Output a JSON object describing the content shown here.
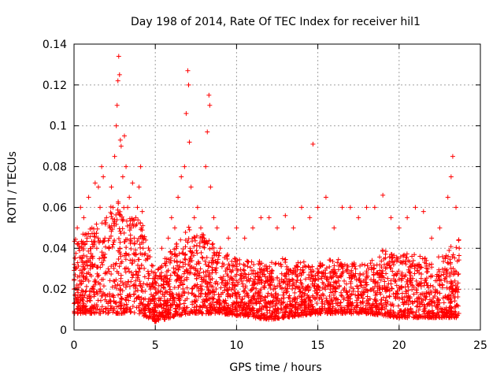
{
  "chart_data": {
    "type": "scatter",
    "title": "Day 198 of 2014, Rate Of TEC Index for receiver hil1",
    "xlabel": "GPS time / hours",
    "ylabel": "ROTI / TECUs",
    "xlim": [
      0,
      25
    ],
    "ylim": [
      0,
      0.14
    ],
    "xticks": [
      0,
      5,
      10,
      15,
      20,
      25
    ],
    "xtick_labels": [
      "0",
      "5",
      "10",
      "15",
      "20",
      "25"
    ],
    "yticks": [
      0,
      0.02,
      0.04,
      0.06,
      0.08,
      0.1,
      0.12,
      0.14
    ],
    "ytick_labels": [
      "0",
      "0.02",
      "0.04",
      "0.06",
      "0.08",
      "0.1",
      "0.12",
      "0.14"
    ],
    "grid": true,
    "marker": "+",
    "color": "#ff0000",
    "series": [
      {
        "name": "ROTI",
        "points": [
          [
            0.0,
            0.02
          ],
          [
            0.1,
            0.03
          ],
          [
            0.2,
            0.05
          ],
          [
            0.3,
            0.04
          ],
          [
            0.4,
            0.06
          ],
          [
            0.5,
            0.035
          ],
          [
            0.6,
            0.055
          ],
          [
            0.7,
            0.025
          ],
          [
            0.8,
            0.045
          ],
          [
            0.9,
            0.065
          ],
          [
            1.0,
            0.03
          ],
          [
            1.1,
            0.05
          ],
          [
            1.2,
            0.02
          ],
          [
            1.3,
            0.072
          ],
          [
            1.4,
            0.04
          ],
          [
            1.5,
            0.07
          ],
          [
            1.6,
            0.06
          ],
          [
            1.7,
            0.08
          ],
          [
            1.8,
            0.075
          ],
          [
            1.9,
            0.045
          ],
          [
            2.0,
            0.055
          ],
          [
            2.1,
            0.03
          ],
          [
            2.2,
            0.05
          ],
          [
            2.3,
            0.07
          ],
          [
            2.4,
            0.06
          ],
          [
            2.5,
            0.085
          ],
          [
            2.6,
            0.1
          ],
          [
            2.65,
            0.11
          ],
          [
            2.7,
            0.122
          ],
          [
            2.75,
            0.134
          ],
          [
            2.8,
            0.125
          ],
          [
            2.85,
            0.093
          ],
          [
            2.9,
            0.09
          ],
          [
            3.0,
            0.075
          ],
          [
            3.1,
            0.095
          ],
          [
            3.2,
            0.08
          ],
          [
            3.3,
            0.06
          ],
          [
            3.4,
            0.065
          ],
          [
            3.5,
            0.05
          ],
          [
            3.6,
            0.072
          ],
          [
            3.7,
            0.045
          ],
          [
            3.8,
            0.055
          ],
          [
            3.9,
            0.06
          ],
          [
            4.0,
            0.07
          ],
          [
            4.1,
            0.08
          ],
          [
            4.2,
            0.058
          ],
          [
            4.3,
            0.045
          ],
          [
            4.5,
            0.035
          ],
          [
            4.7,
            0.02
          ],
          [
            4.9,
            0.015
          ],
          [
            5.0,
            0.02
          ],
          [
            5.2,
            0.03
          ],
          [
            5.4,
            0.04
          ],
          [
            5.6,
            0.035
          ],
          [
            5.8,
            0.045
          ],
          [
            6.0,
            0.055
          ],
          [
            6.2,
            0.05
          ],
          [
            6.4,
            0.065
          ],
          [
            6.6,
            0.075
          ],
          [
            6.8,
            0.08
          ],
          [
            6.9,
            0.106
          ],
          [
            7.0,
            0.127
          ],
          [
            7.05,
            0.12
          ],
          [
            7.1,
            0.092
          ],
          [
            7.2,
            0.07
          ],
          [
            7.4,
            0.055
          ],
          [
            7.6,
            0.06
          ],
          [
            7.8,
            0.05
          ],
          [
            8.0,
            0.045
          ],
          [
            8.1,
            0.08
          ],
          [
            8.2,
            0.097
          ],
          [
            8.3,
            0.115
          ],
          [
            8.35,
            0.11
          ],
          [
            8.4,
            0.07
          ],
          [
            8.6,
            0.055
          ],
          [
            8.8,
            0.05
          ],
          [
            9.0,
            0.04
          ],
          [
            9.5,
            0.045
          ],
          [
            10.0,
            0.05
          ],
          [
            10.5,
            0.045
          ],
          [
            11.0,
            0.05
          ],
          [
            11.5,
            0.055
          ],
          [
            12.0,
            0.055
          ],
          [
            12.5,
            0.05
          ],
          [
            13.0,
            0.056
          ],
          [
            13.5,
            0.05
          ],
          [
            14.0,
            0.06
          ],
          [
            14.5,
            0.055
          ],
          [
            14.7,
            0.091
          ],
          [
            15.0,
            0.06
          ],
          [
            15.5,
            0.065
          ],
          [
            16.0,
            0.05
          ],
          [
            16.5,
            0.06
          ],
          [
            17.0,
            0.06
          ],
          [
            17.5,
            0.055
          ],
          [
            18.0,
            0.06
          ],
          [
            18.5,
            0.06
          ],
          [
            19.0,
            0.066
          ],
          [
            19.5,
            0.055
          ],
          [
            20.0,
            0.05
          ],
          [
            20.5,
            0.055
          ],
          [
            21.0,
            0.06
          ],
          [
            21.5,
            0.058
          ],
          [
            22.0,
            0.045
          ],
          [
            22.5,
            0.05
          ],
          [
            23.0,
            0.065
          ],
          [
            23.2,
            0.075
          ],
          [
            23.3,
            0.085
          ],
          [
            23.5,
            0.06
          ],
          [
            23.7,
            0.04
          ]
        ],
        "envelope": {
          "hours": [
            0,
            1,
            2,
            2.6,
            3,
            3.5,
            4,
            4.5,
            5,
            6,
            7,
            8,
            9,
            10,
            11,
            12,
            13,
            14,
            15,
            16,
            17,
            18,
            19,
            20,
            21,
            22,
            23,
            23.7
          ],
          "typical": [
            0.04,
            0.045,
            0.05,
            0.06,
            0.055,
            0.05,
            0.05,
            0.04,
            0.025,
            0.035,
            0.045,
            0.042,
            0.035,
            0.032,
            0.03,
            0.03,
            0.032,
            0.03,
            0.03,
            0.032,
            0.03,
            0.03,
            0.035,
            0.032,
            0.035,
            0.03,
            0.035,
            0.04
          ],
          "floor": [
            0.008,
            0.008,
            0.008,
            0.008,
            0.008,
            0.008,
            0.008,
            0.006,
            0.004,
            0.006,
            0.008,
            0.008,
            0.008,
            0.007,
            0.006,
            0.005,
            0.006,
            0.007,
            0.008,
            0.008,
            0.008,
            0.008,
            0.007,
            0.006,
            0.006,
            0.006,
            0.006,
            0.006
          ]
        }
      }
    ]
  }
}
